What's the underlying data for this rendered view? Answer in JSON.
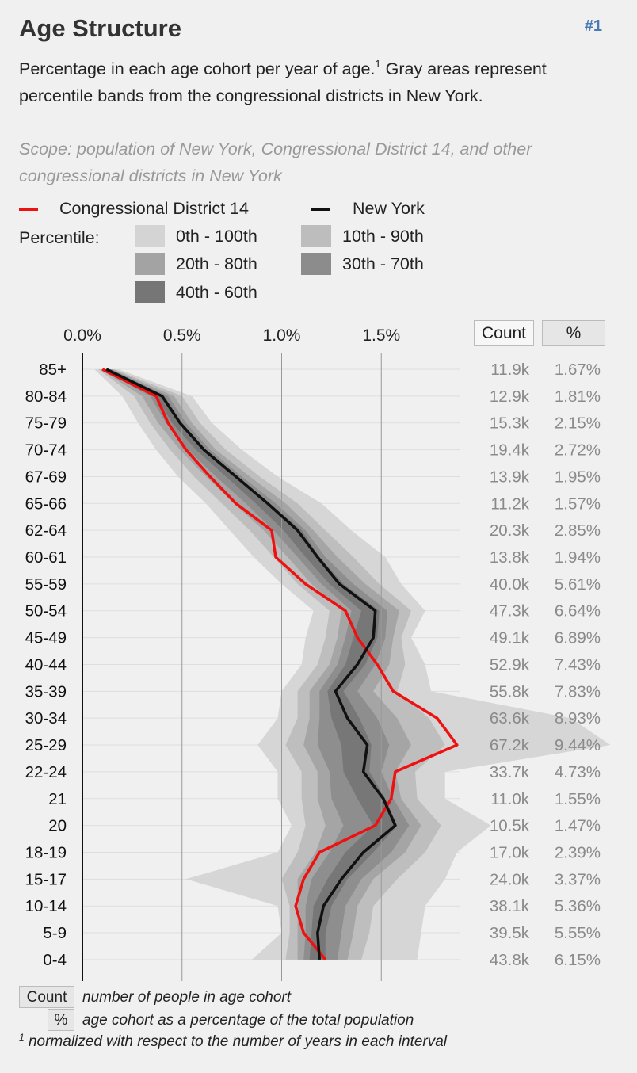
{
  "header": {
    "title": "Age Structure",
    "rank": "#1",
    "description": "Percentage in each age cohort per year of age.",
    "footnote_marker": "1",
    "description_cont": " Gray areas represent percentile bands from the congressional districts in New York.",
    "scope": "Scope: population of New York, Congressional District 14, and other congressional districts in New York"
  },
  "legend": {
    "district_label": "Congressional District 14",
    "state_label": "New York",
    "percentile_label": "Percentile:",
    "bands": [
      "0th - 100th",
      "10th - 90th",
      "20th - 80th",
      "30th - 70th",
      "40th - 60th"
    ]
  },
  "table_headers": {
    "count": "Count",
    "percent": "%"
  },
  "colors": {
    "district": "#ee1111",
    "state": "#111111",
    "band_0_100": "#d4d4d4",
    "band_10_90": "#bdbdbd",
    "band_20_80": "#a3a3a3",
    "band_30_70": "#8c8c8c",
    "band_40_60": "#767676"
  },
  "chart_data": {
    "type": "line",
    "orientation": "horizontal",
    "x_axis_ticks": [
      "0.0%",
      "0.5%",
      "1.0%",
      "1.5%"
    ],
    "xlim": [
      0,
      2.65
    ],
    "categories": [
      "85+",
      "80-84",
      "75-79",
      "70-74",
      "67-69",
      "65-66",
      "62-64",
      "60-61",
      "55-59",
      "50-54",
      "45-49",
      "40-44",
      "35-39",
      "30-34",
      "25-29",
      "22-24",
      "21",
      "20",
      "18-19",
      "15-17",
      "10-14",
      "5-9",
      "0-4"
    ],
    "series": [
      {
        "name": "Congressional District 14",
        "values": [
          0.1,
          0.37,
          0.43,
          0.52,
          0.64,
          0.77,
          0.95,
          0.97,
          1.12,
          1.32,
          1.38,
          1.48,
          1.56,
          1.78,
          1.88,
          1.57,
          1.55,
          1.47,
          1.19,
          1.11,
          1.07,
          1.11,
          1.22
        ]
      },
      {
        "name": "New York",
        "values": [
          0.12,
          0.4,
          0.49,
          0.61,
          0.77,
          0.93,
          1.08,
          1.18,
          1.29,
          1.47,
          1.46,
          1.38,
          1.27,
          1.33,
          1.43,
          1.41,
          1.51,
          1.57,
          1.41,
          1.3,
          1.21,
          1.18,
          1.19
        ]
      }
    ],
    "bands": {
      "p0_100": {
        "low": [
          0.06,
          0.2,
          0.28,
          0.37,
          0.48,
          0.62,
          0.74,
          0.86,
          1.0,
          1.16,
          1.12,
          1.1,
          1.0,
          0.98,
          0.88,
          0.98,
          0.98,
          1.05,
          0.98,
          0.52,
          0.98,
          1.0,
          0.85
        ],
        "high": [
          0.18,
          0.55,
          0.65,
          0.8,
          0.98,
          1.2,
          1.35,
          1.52,
          1.6,
          1.72,
          1.65,
          1.72,
          1.75,
          2.45,
          2.65,
          1.82,
          1.82,
          2.05,
          1.88,
          1.82,
          1.72,
          1.7,
          1.68
        ]
      },
      "p10_90": {
        "low": [
          0.08,
          0.26,
          0.34,
          0.44,
          0.56,
          0.7,
          0.84,
          0.96,
          1.08,
          1.24,
          1.22,
          1.18,
          1.08,
          1.08,
          1.02,
          1.1,
          1.1,
          1.12,
          1.08,
          1.0,
          1.04,
          1.04,
          1.02
        ],
        "high": [
          0.16,
          0.5,
          0.59,
          0.72,
          0.89,
          1.08,
          1.22,
          1.36,
          1.49,
          1.65,
          1.6,
          1.62,
          1.58,
          1.74,
          1.82,
          1.67,
          1.68,
          1.8,
          1.72,
          1.58,
          1.46,
          1.44,
          1.4
        ]
      },
      "p20_80": {
        "low": [
          0.09,
          0.3,
          0.38,
          0.49,
          0.62,
          0.76,
          0.91,
          1.03,
          1.15,
          1.3,
          1.28,
          1.24,
          1.14,
          1.14,
          1.11,
          1.18,
          1.18,
          1.22,
          1.17,
          1.08,
          1.08,
          1.08,
          1.08
        ],
        "high": [
          0.15,
          0.46,
          0.55,
          0.67,
          0.84,
          1.02,
          1.16,
          1.28,
          1.42,
          1.59,
          1.56,
          1.54,
          1.46,
          1.58,
          1.65,
          1.57,
          1.6,
          1.7,
          1.62,
          1.46,
          1.38,
          1.36,
          1.33
        ]
      },
      "p30_70": {
        "low": [
          0.1,
          0.34,
          0.42,
          0.53,
          0.67,
          0.82,
          0.96,
          1.08,
          1.2,
          1.35,
          1.32,
          1.28,
          1.19,
          1.19,
          1.18,
          1.24,
          1.25,
          1.31,
          1.24,
          1.15,
          1.12,
          1.12,
          1.11
        ],
        "high": [
          0.14,
          0.43,
          0.52,
          0.64,
          0.8,
          0.97,
          1.12,
          1.22,
          1.36,
          1.53,
          1.52,
          1.47,
          1.38,
          1.48,
          1.54,
          1.5,
          1.56,
          1.64,
          1.55,
          1.4,
          1.32,
          1.3,
          1.28
        ]
      },
      "p40_60": {
        "low": [
          0.11,
          0.37,
          0.45,
          0.57,
          0.72,
          0.87,
          1.01,
          1.12,
          1.24,
          1.4,
          1.36,
          1.32,
          1.23,
          1.25,
          1.3,
          1.31,
          1.38,
          1.46,
          1.32,
          1.23,
          1.16,
          1.15,
          1.14
        ],
        "high": [
          0.13,
          0.41,
          0.5,
          0.62,
          0.78,
          0.94,
          1.1,
          1.19,
          1.31,
          1.49,
          1.48,
          1.42,
          1.31,
          1.39,
          1.45,
          1.44,
          1.52,
          1.58,
          1.46,
          1.33,
          1.25,
          1.22,
          1.22
        ]
      }
    },
    "counts": [
      "11.9k",
      "12.9k",
      "15.3k",
      "19.4k",
      "13.9k",
      "11.2k",
      "20.3k",
      "13.8k",
      "40.0k",
      "47.3k",
      "49.1k",
      "52.9k",
      "55.8k",
      "63.6k",
      "67.2k",
      "33.7k",
      "11.0k",
      "10.5k",
      "17.0k",
      "24.0k",
      "38.1k",
      "39.5k",
      "43.8k"
    ],
    "percents": [
      "1.67%",
      "1.81%",
      "2.15%",
      "2.72%",
      "1.95%",
      "1.57%",
      "2.85%",
      "1.94%",
      "5.61%",
      "6.64%",
      "6.89%",
      "7.43%",
      "7.83%",
      "8.93%",
      "9.44%",
      "4.73%",
      "1.55%",
      "1.47%",
      "2.39%",
      "3.37%",
      "5.36%",
      "5.55%",
      "6.15%"
    ]
  },
  "footer": {
    "count_btn": "Count",
    "count_desc": "number of people in age cohort",
    "pct_btn": "%",
    "pct_desc": "age cohort as a percentage of the total population",
    "note_marker": "1",
    "note_text": "normalized with respect to the number of years in each interval"
  }
}
